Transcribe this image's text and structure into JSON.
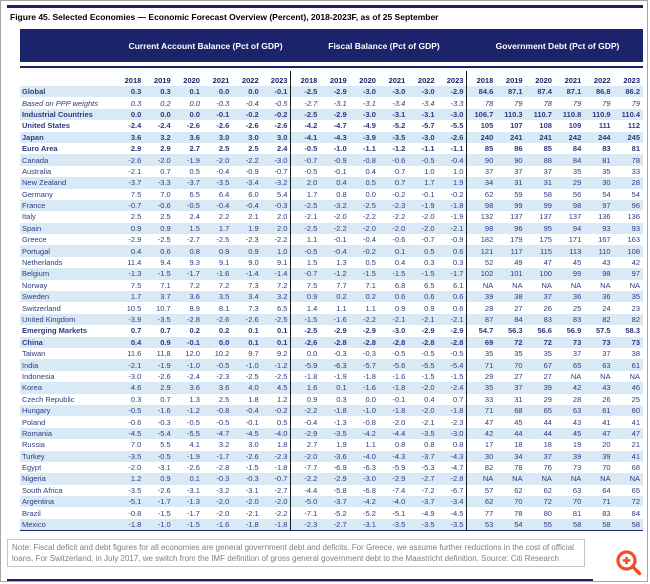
{
  "figure": {
    "title": "Figure 45. Selected Economies — Economic Forecast Overview (Percent), 2018-2023F, as of 25 September",
    "note": "Note: Fiscal deficit and debt figures for all economies are general government debt and deficits. For Greece, we assume further reductions in the cost of official loans. For Switzerland, in July 2017, we switch from the IMF definition of gross general government debt to the Maastricht definition. Source: Citi Research"
  },
  "colors": {
    "navy": "#1b246b",
    "stripe": "#d9eaf7",
    "body-text": "#2e3a80",
    "note-grey": "#7f7f7f",
    "accent": "#f04e23"
  },
  "icons": {
    "zoom_in": "magnifier-plus-icon"
  },
  "table": {
    "groups": [
      {
        "label": "Current Account Balance (Pct of GDP)"
      },
      {
        "label": "Fiscal Balance (Pct of GDP)"
      },
      {
        "label": "Government Debt (Pct of GDP)"
      }
    ],
    "years": [
      "2018",
      "2019",
      "2020",
      "2021",
      "2022",
      "2023"
    ],
    "rows": [
      {
        "name": "Global",
        "style": "bold",
        "ca": [
          "0.3",
          "0.3",
          "0.1",
          "0.0",
          "0.0",
          "-0.1"
        ],
        "fb": [
          "-2.5",
          "-2.9",
          "-3.0",
          "-3.0",
          "-3.0",
          "-2.9"
        ],
        "debt": [
          "84.6",
          "87.1",
          "87.4",
          "87.1",
          "86.8",
          "86.2"
        ]
      },
      {
        "name": "Based on PPP weights",
        "style": "italic",
        "ca": [
          "0.3",
          "0.2",
          "0.0",
          "-0.3",
          "-0.4",
          "-0.5"
        ],
        "fb": [
          "-2.7",
          "-3.1",
          "-3.1",
          "-3.4",
          "-3.4",
          "-3.3"
        ],
        "debt": [
          "78",
          "79",
          "78",
          "79",
          "79",
          "79"
        ]
      },
      {
        "name": "Industrial Countries",
        "style": "bold",
        "ca": [
          "0.0",
          "0.0",
          "0.0",
          "-0.1",
          "-0.2",
          "-0.2"
        ],
        "fb": [
          "-2.5",
          "-2.9",
          "-3.0",
          "-3.1",
          "-3.1",
          "-3.0"
        ],
        "debt": [
          "106.7",
          "110.3",
          "110.7",
          "110.8",
          "110.9",
          "110.4"
        ]
      },
      {
        "name": "United States",
        "style": "bold",
        "ca": [
          "-2.4",
          "-2.4",
          "-2.6",
          "-2.6",
          "-2.6",
          "-2.6"
        ],
        "fb": [
          "-4.2",
          "-4.7",
          "-4.9",
          "-5.2",
          "-5.7",
          "-5.5"
        ],
        "debt": [
          "105",
          "107",
          "108",
          "109",
          "111",
          "112"
        ]
      },
      {
        "name": "Japan",
        "style": "bold",
        "ca": [
          "3.6",
          "3.2",
          "3.6",
          "3.0",
          "3.0",
          "3.0"
        ],
        "fb": [
          "-4.1",
          "-4.3",
          "-3.9",
          "-3.5",
          "-3.0",
          "-2.6"
        ],
        "debt": [
          "240",
          "241",
          "241",
          "242",
          "244",
          "245"
        ]
      },
      {
        "name": "Euro Area",
        "style": "bold",
        "ca": [
          "2.9",
          "2.9",
          "2.7",
          "2.5",
          "2.5",
          "2.4"
        ],
        "fb": [
          "-0.5",
          "-1.0",
          "-1.1",
          "-1.2",
          "-1.1",
          "-1.1"
        ],
        "debt": [
          "85",
          "86",
          "85",
          "84",
          "83",
          "81"
        ]
      },
      {
        "name": "Canada",
        "style": "",
        "ca": [
          "-2.6",
          "-2.0",
          "-1.9",
          "-2.0",
          "-2.2",
          "-3.0"
        ],
        "fb": [
          "-0.7",
          "-0.9",
          "-0.8",
          "-0.6",
          "-0.5",
          "-0.4"
        ],
        "debt": [
          "90",
          "90",
          "88",
          "84",
          "81",
          "78"
        ]
      },
      {
        "name": "Australia",
        "style": "",
        "ca": [
          "-2.1",
          "0.7",
          "0.5",
          "-0.4",
          "-0.9",
          "-0.7"
        ],
        "fb": [
          "-0.5",
          "-0.1",
          "0.4",
          "0.7",
          "1.0",
          "1.0"
        ],
        "debt": [
          "37",
          "37",
          "37",
          "35",
          "35",
          "33"
        ]
      },
      {
        "name": "New Zealand",
        "style": "",
        "ca": [
          "-3.7",
          "-3.3",
          "-3.7",
          "-3.5",
          "-3.4",
          "-3.2"
        ],
        "fb": [
          "2.0",
          "0.4",
          "0.5",
          "0.7",
          "1.7",
          "1.9"
        ],
        "debt": [
          "34",
          "31",
          "31",
          "29",
          "30",
          "28"
        ]
      },
      {
        "name": "Germany",
        "style": "",
        "ca": [
          "7.5",
          "7.0",
          "6.5",
          "6.4",
          "6.0",
          "5.4"
        ],
        "fb": [
          "1.7",
          "0.8",
          "0.0",
          "-0.2",
          "-0.1",
          "-0.2"
        ],
        "debt": [
          "62",
          "59",
          "58",
          "56",
          "54",
          "54"
        ]
      },
      {
        "name": "France",
        "style": "",
        "ca": [
          "-0.7",
          "-0.6",
          "-0.5",
          "-0.4",
          "-0.4",
          "-0.3"
        ],
        "fb": [
          "-2.5",
          "-3.2",
          "-2.5",
          "-2.3",
          "-1.9",
          "-1.8"
        ],
        "debt": [
          "98",
          "99",
          "99",
          "98",
          "97",
          "96"
        ]
      },
      {
        "name": "Italy",
        "style": "",
        "ca": [
          "2.5",
          "2.5",
          "2.4",
          "2.2",
          "2.1",
          "2.0"
        ],
        "fb": [
          "-2.1",
          "-2.0",
          "-2.2",
          "-2.2",
          "-2.0",
          "-1.9"
        ],
        "debt": [
          "132",
          "137",
          "137",
          "137",
          "136",
          "136"
        ]
      },
      {
        "name": "Spain",
        "style": "",
        "ca": [
          "0.9",
          "0.9",
          "1.5",
          "1.7",
          "1.9",
          "2.0"
        ],
        "fb": [
          "-2.5",
          "-2.2",
          "-2.0",
          "-2.0",
          "-2.0",
          "-2.1"
        ],
        "debt": [
          "98",
          "96",
          "95",
          "94",
          "93",
          "93"
        ]
      },
      {
        "name": "Greece",
        "style": "",
        "ca": [
          "-2.9",
          "-2.5",
          "-2.7",
          "-2.5",
          "-2.3",
          "-2.2"
        ],
        "fb": [
          "1.1",
          "-0.1",
          "-0.4",
          "-0.6",
          "-0.7",
          "-0.9"
        ],
        "debt": [
          "182",
          "179",
          "175",
          "171",
          "167",
          "163"
        ]
      },
      {
        "name": "Portugal",
        "style": "",
        "ca": [
          "0.4",
          "0.6",
          "0.8",
          "0.9",
          "0.9",
          "1.0"
        ],
        "fb": [
          "-0.5",
          "-0.4",
          "-0.2",
          "0.1",
          "0.5",
          "0.6"
        ],
        "debt": [
          "121",
          "117",
          "115",
          "113",
          "110",
          "108"
        ]
      },
      {
        "name": "Netherlands",
        "style": "",
        "ca": [
          "11.4",
          "9.4",
          "9.3",
          "9.1",
          "9.0",
          "9.1"
        ],
        "fb": [
          "1.5",
          "1.3",
          "0.5",
          "0.4",
          "0.3",
          "0.3"
        ],
        "debt": [
          "52",
          "49",
          "47",
          "45",
          "43",
          "42"
        ]
      },
      {
        "name": "Belgium",
        "style": "",
        "ca": [
          "-1.3",
          "-1.5",
          "-1.7",
          "-1.6",
          "-1.4",
          "-1.4"
        ],
        "fb": [
          "-0.7",
          "-1.2",
          "-1.5",
          "-1.5",
          "-1.5",
          "-1.7"
        ],
        "debt": [
          "102",
          "101",
          "100",
          "99",
          "98",
          "97"
        ]
      },
      {
        "name": "Norway",
        "style": "",
        "ca": [
          "7.5",
          "7.1",
          "7.2",
          "7.2",
          "7.3",
          "7.2"
        ],
        "fb": [
          "7.5",
          "7.7",
          "7.1",
          "6.8",
          "6.5",
          "6.1"
        ],
        "debt": [
          "NA",
          "NA",
          "NA",
          "NA",
          "NA",
          "NA"
        ]
      },
      {
        "name": "Sweden",
        "style": "",
        "ca": [
          "1.7",
          "3.7",
          "3.6",
          "3.5",
          "3.4",
          "3.2"
        ],
        "fb": [
          "0.9",
          "0.2",
          "0.2",
          "0.6",
          "0.6",
          "0.6"
        ],
        "debt": [
          "39",
          "38",
          "37",
          "36",
          "36",
          "35"
        ]
      },
      {
        "name": "Switzerland",
        "style": "",
        "ca": [
          "10.5",
          "10.7",
          "8.9",
          "8.1",
          "7.3",
          "6.5"
        ],
        "fb": [
          "1.4",
          "1.1",
          "1.1",
          "0.9",
          "0.9",
          "0.6"
        ],
        "debt": [
          "28",
          "27",
          "26",
          "25",
          "24",
          "23"
        ]
      },
      {
        "name": "United Kingdom",
        "style": "",
        "ca": [
          "-3.9",
          "-3.5",
          "-2.8",
          "-2.6",
          "-2.6",
          "-2.5"
        ],
        "fb": [
          "-1.5",
          "-1.6",
          "-2.2",
          "-2.1",
          "-2.1",
          "-2.1"
        ],
        "debt": [
          "87",
          "84",
          "83",
          "83",
          "82",
          "82"
        ]
      },
      {
        "name": "Emerging Markets",
        "style": "bold",
        "ca": [
          "0.7",
          "0.7",
          "0.2",
          "0.2",
          "0.1",
          "0.1"
        ],
        "fb": [
          "-2.5",
          "-2.9",
          "-2.9",
          "-3.0",
          "-2.9",
          "-2.9"
        ],
        "debt": [
          "54.7",
          "56.3",
          "56.6",
          "56.9",
          "57.5",
          "58.3"
        ]
      },
      {
        "name": "China",
        "style": "bold",
        "ca": [
          "0.4",
          "0.9",
          "-0.1",
          "0.0",
          "0.1",
          "0.1"
        ],
        "fb": [
          "-2.6",
          "-2.8",
          "-2.8",
          "-2.8",
          "-2.8",
          "-2.8"
        ],
        "debt": [
          "69",
          "72",
          "72",
          "73",
          "73",
          "73"
        ]
      },
      {
        "name": "Taiwan",
        "style": "",
        "ca": [
          "11.6",
          "11.8",
          "12.0",
          "10.2",
          "9.7",
          "9.2"
        ],
        "fb": [
          "0.0",
          "-0.3",
          "-0.3",
          "-0.5",
          "-0.5",
          "-0.5"
        ],
        "debt": [
          "35",
          "35",
          "35",
          "37",
          "37",
          "38"
        ]
      },
      {
        "name": "India",
        "style": "",
        "ca": [
          "-2.1",
          "-1.9",
          "-1.0",
          "-0.5",
          "-1.0",
          "-1.2"
        ],
        "fb": [
          "-5.9",
          "-6.3",
          "-5.7",
          "-5.6",
          "-5.5",
          "-5.4"
        ],
        "debt": [
          "71",
          "70",
          "67",
          "65",
          "63",
          "61"
        ]
      },
      {
        "name": "Indonesia",
        "style": "",
        "ca": [
          "-3.0",
          "-2.6",
          "-2.4",
          "-2.3",
          "-2.5",
          "-2.5"
        ],
        "fb": [
          "-1.8",
          "-1.9",
          "-1.8",
          "-1.6",
          "-1.5",
          "-1.5"
        ],
        "debt": [
          "29",
          "27",
          "27",
          "NA",
          "NA",
          "NA"
        ]
      },
      {
        "name": "Korea",
        "style": "",
        "ca": [
          "4.6",
          "2.9",
          "3.6",
          "3.6",
          "4.0",
          "4.5"
        ],
        "fb": [
          "1.6",
          "0.1",
          "-1.6",
          "-1.8",
          "-2.0",
          "-2.4"
        ],
        "debt": [
          "35",
          "37",
          "39",
          "42",
          "43",
          "46"
        ]
      },
      {
        "name": "Czech Republic",
        "style": "",
        "ca": [
          "0.3",
          "0.7",
          "1.3",
          "2.5",
          "1.8",
          "1.2"
        ],
        "fb": [
          "0.9",
          "0.3",
          "0.0",
          "-0.1",
          "0.4",
          "0.7"
        ],
        "debt": [
          "33",
          "31",
          "29",
          "28",
          "26",
          "25"
        ]
      },
      {
        "name": "Hungary",
        "style": "",
        "ca": [
          "-0.5",
          "-1.6",
          "-1.2",
          "-0.8",
          "-0.4",
          "-0.2"
        ],
        "fb": [
          "-2.2",
          "-1.8",
          "-1.0",
          "-1.8",
          "-2.0",
          "-1.8"
        ],
        "debt": [
          "71",
          "68",
          "65",
          "63",
          "61",
          "60"
        ]
      },
      {
        "name": "Poland",
        "style": "",
        "ca": [
          "-0.6",
          "-0.3",
          "-0.5",
          "-0.5",
          "-0.1",
          "0.5"
        ],
        "fb": [
          "-0.4",
          "-1.3",
          "-0.8",
          "-2.0",
          "-2.1",
          "-2.3"
        ],
        "debt": [
          "47",
          "45",
          "44",
          "43",
          "41",
          "41"
        ]
      },
      {
        "name": "Romania",
        "style": "",
        "ca": [
          "-4.5",
          "-5.4",
          "-5.5",
          "-4.7",
          "-4.5",
          "-4.0"
        ],
        "fb": [
          "-2.9",
          "-3.5",
          "-4.2",
          "-4.4",
          "-3.5",
          "-3.0"
        ],
        "debt": [
          "42",
          "44",
          "44",
          "45",
          "47",
          "47"
        ]
      },
      {
        "name": "Russia",
        "style": "",
        "ca": [
          "7.0",
          "5.5",
          "4.1",
          "3.2",
          "3.0",
          "1.8"
        ],
        "fb": [
          "2.7",
          "1.9",
          "1.1",
          "0.8",
          "0.8",
          "0.8"
        ],
        "debt": [
          "17",
          "18",
          "18",
          "19",
          "20",
          "21"
        ]
      },
      {
        "name": "Turkey",
        "style": "",
        "ca": [
          "-3.5",
          "-0.5",
          "-1.9",
          "-1.7",
          "-2.6",
          "-2.3"
        ],
        "fb": [
          "-2.0",
          "-3.6",
          "-4.0",
          "-4.3",
          "-3.7",
          "-4.3"
        ],
        "debt": [
          "30",
          "34",
          "37",
          "39",
          "39",
          "41"
        ]
      },
      {
        "name": "Egypt",
        "style": "",
        "ca": [
          "-2.0",
          "-3.1",
          "-2.6",
          "-2.8",
          "-1.5",
          "-1.8"
        ],
        "fb": [
          "-7.7",
          "-6.9",
          "-6.3",
          "-5.9",
          "-5.3",
          "-4.7"
        ],
        "debt": [
          "82",
          "78",
          "76",
          "73",
          "70",
          "68"
        ]
      },
      {
        "name": "Nigeria",
        "style": "",
        "ca": [
          "1.2",
          "0.9",
          "0.1",
          "-0.3",
          "-0.3",
          "-0.7"
        ],
        "fb": [
          "-2.2",
          "-2.9",
          "-3.0",
          "-2.9",
          "-2.7",
          "-2.8"
        ],
        "debt": [
          "NA",
          "NA",
          "NA",
          "NA",
          "NA",
          "NA"
        ]
      },
      {
        "name": "South Africa",
        "style": "",
        "ca": [
          "-3.5",
          "-2.6",
          "-3.1",
          "-3.2",
          "-3.1",
          "-2.7"
        ],
        "fb": [
          "-4.4",
          "-5.8",
          "-6.8",
          "-7.4",
          "-7.2",
          "-6.7"
        ],
        "debt": [
          "57",
          "62",
          "62",
          "63",
          "64",
          "65"
        ]
      },
      {
        "name": "Argentina",
        "style": "",
        "ca": [
          "-5.1",
          "-1.7",
          "-1.3",
          "-2.0",
          "-2.0",
          "-2.0"
        ],
        "fb": [
          "-5.0",
          "-3.7",
          "-4.2",
          "-4.0",
          "-3.7",
          "-3.4"
        ],
        "debt": [
          "62",
          "70",
          "72",
          "70",
          "71",
          "72"
        ]
      },
      {
        "name": "Brazil",
        "style": "",
        "ca": [
          "-0.8",
          "-1.5",
          "-1.7",
          "-2.0",
          "-2.1",
          "-2.2"
        ],
        "fb": [
          "-7.1",
          "-5.2",
          "-5.2",
          "-5.1",
          "-4.9",
          "-4.5"
        ],
        "debt": [
          "77",
          "78",
          "80",
          "81",
          "83",
          "84"
        ]
      },
      {
        "name": "Mexico",
        "style": "",
        "ca": [
          "-1.8",
          "-1.0",
          "-1.5",
          "-1.6",
          "-1.8",
          "-1.8"
        ],
        "fb": [
          "-2.3",
          "-2.7",
          "-3.1",
          "-3.5",
          "-3.5",
          "-3.5"
        ],
        "debt": [
          "53",
          "54",
          "55",
          "58",
          "58",
          "58"
        ]
      }
    ]
  }
}
